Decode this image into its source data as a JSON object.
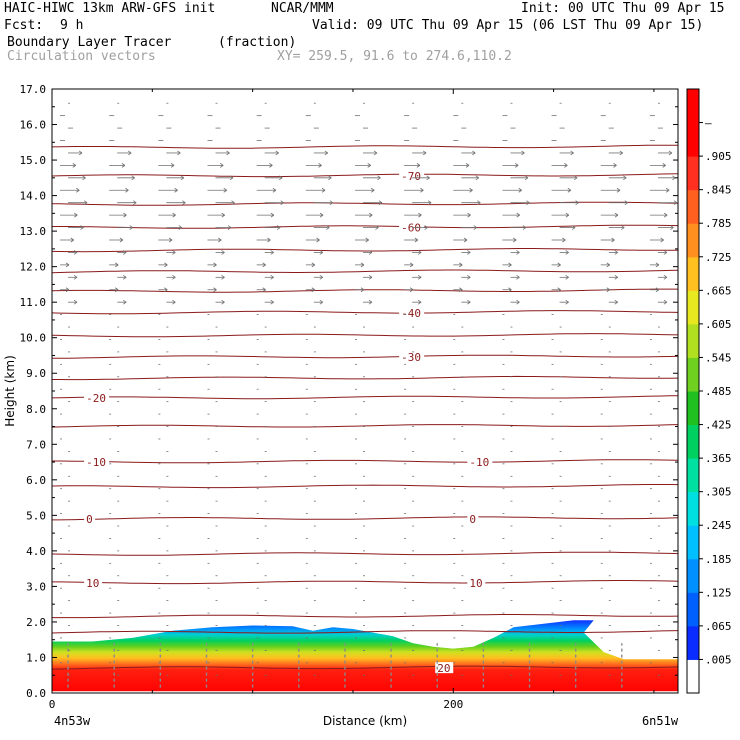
{
  "header": {
    "model": "HAIC-HIWC 13km ARW-GFS init",
    "org": "NCAR/MMM",
    "init": "Init: 00 UTC Thu 09 Apr 15",
    "fcst_label": "Fcst:",
    "fcst_value": "9 h",
    "valid": "Valid: 09 UTC Thu 09 Apr 15 (06 LST Thu 09 Apr 15)",
    "field": "Boundary Layer Tracer",
    "units": "(fraction)",
    "field2": "Circulation vectors",
    "xy": "XY= 259.5, 91.6 to 274.6,110.2"
  },
  "chart_data": {
    "type": "heatmap",
    "title": "Boundary Layer Tracer (fraction) with temperature contours and circulation vectors",
    "ylabel": "Height (km)",
    "xlabel": "Distance (km)",
    "ylim": [
      0,
      17
    ],
    "xlim": [
      0,
      312
    ],
    "y_ticks": [
      "0.0",
      "1.0",
      "2.0",
      "3.0",
      "4.0",
      "5.0",
      "6.0",
      "7.0",
      "8.0",
      "9.0",
      "10.0",
      "11.0",
      "12.0",
      "13.0",
      "14.0",
      "15.0",
      "16.0",
      "17.0"
    ],
    "x_ticks": [
      {
        "value": 0,
        "label": "0"
      },
      {
        "value": 200,
        "label": "200"
      }
    ],
    "x_end_labels": {
      "left": "4n53w",
      "right": "6n51w"
    },
    "colorbar": {
      "labels": [
        ".005",
        ".065",
        ".125",
        ".185",
        ".245",
        ".305",
        ".365",
        ".425",
        ".485",
        ".545",
        ".605",
        ".665",
        ".725",
        ".785",
        ".845",
        ".905",
        "–"
      ],
      "colors": [
        "#ffffff",
        "#0a2cff",
        "#0060ff",
        "#0090ff",
        "#00c0ff",
        "#00e0e0",
        "#00e0a0",
        "#00d060",
        "#20c020",
        "#70d020",
        "#b0e020",
        "#e8e820",
        "#ffc020",
        "#ff9020",
        "#ff6020",
        "#ff3020",
        "#ff0000",
        "#ff0000"
      ]
    },
    "tracer_top_km": [
      [
        0,
        1.45
      ],
      [
        20,
        1.45
      ],
      [
        40,
        1.55
      ],
      [
        60,
        1.75
      ],
      [
        80,
        1.85
      ],
      [
        100,
        1.9
      ],
      [
        120,
        1.88
      ],
      [
        130,
        1.75
      ],
      [
        140,
        1.85
      ],
      [
        150,
        1.8
      ],
      [
        160,
        1.7
      ],
      [
        170,
        1.6
      ],
      [
        180,
        1.4
      ],
      [
        190,
        1.3
      ],
      [
        200,
        1.25
      ],
      [
        210,
        1.3
      ],
      [
        220,
        1.55
      ],
      [
        230,
        1.85
      ],
      [
        245,
        1.95
      ],
      [
        260,
        2.05
      ],
      [
        270,
        2.05
      ],
      [
        265,
        1.7
      ],
      [
        275,
        1.15
      ],
      [
        285,
        0.95
      ],
      [
        300,
        0.95
      ],
      [
        312,
        0.95
      ]
    ],
    "temperature_contours": [
      {
        "label": "-70",
        "height_km": 14.55,
        "label_x_km": 174
      },
      {
        "label": "-60",
        "height_km": 13.1,
        "label_x_km": 174
      },
      {
        "label": "-40",
        "height_km": 10.7,
        "label_x_km": 174
      },
      {
        "label": "-30",
        "height_km": 9.45,
        "label_x_km": 174
      },
      {
        "label": "-20",
        "height_km": 8.3,
        "label_x_km": 17
      },
      {
        "label": "-10",
        "height_km": 6.5,
        "label_x_km": 17
      },
      {
        "label": "-10",
        "height_km": 6.5,
        "label_x_km": 208
      },
      {
        "label": "0",
        "height_km": 4.9,
        "label_x_km": 17
      },
      {
        "label": "0",
        "height_km": 4.9,
        "label_x_km": 208
      },
      {
        "label": "10",
        "height_km": 3.1,
        "label_x_km": 17
      },
      {
        "label": "10",
        "height_km": 3.1,
        "label_x_km": 208
      },
      {
        "label": "20",
        "height_km": 0.7,
        "label_x_km": 192
      }
    ],
    "unlabeled_contour_heights_km": [
      15.35,
      13.75,
      12.45,
      11.85,
      11.3,
      10.05,
      8.85,
      7.5,
      5.8,
      3.9,
      2.15,
      1.7
    ],
    "vectors": {
      "strong_layer_km": [
        12.5,
        15.3
      ],
      "direction": "eastward",
      "lower_levels": "weak"
    }
  }
}
